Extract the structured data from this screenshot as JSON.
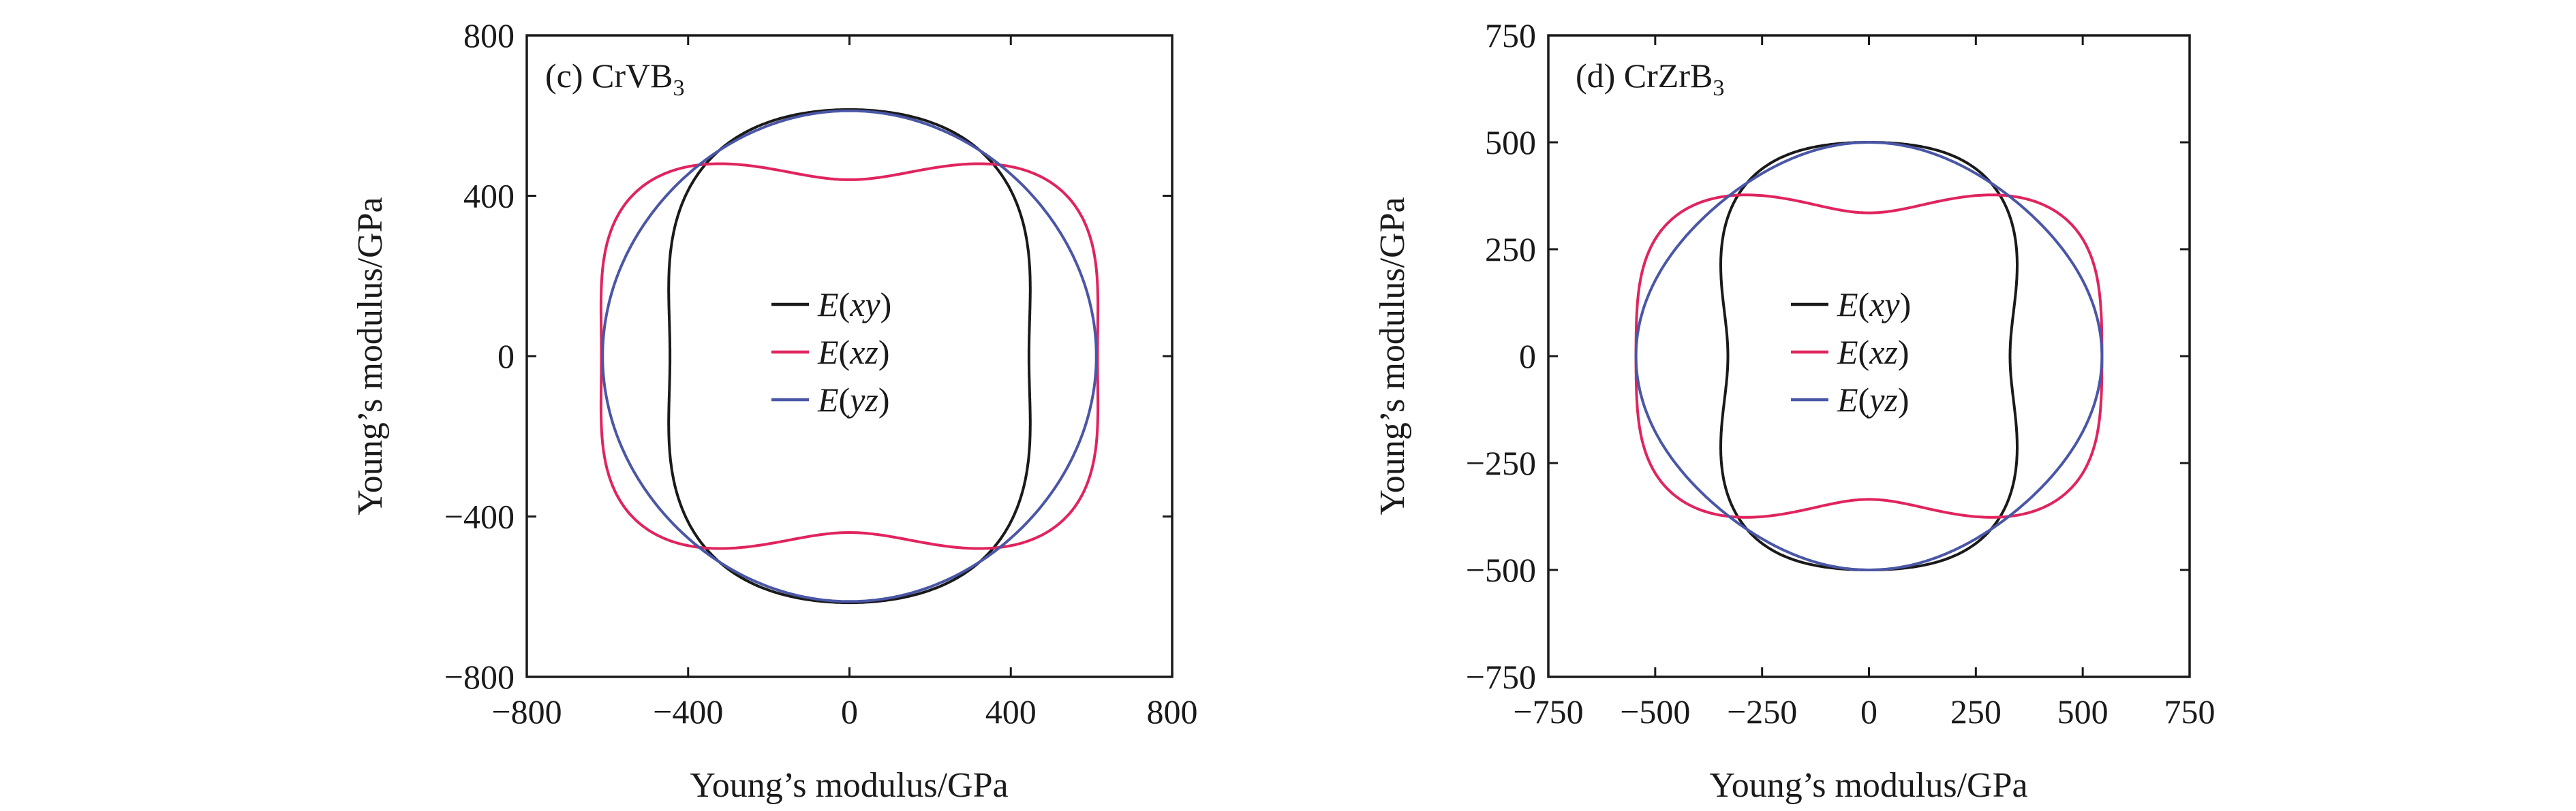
{
  "chart_data": [
    {
      "type": "polar-curve",
      "panel_label": "(c) CrVB",
      "panel_label_sub": "3",
      "xlabel": "Young’s modulus/GPa",
      "ylabel": "Young’s modulus/GPa",
      "xlim": [
        -800,
        800
      ],
      "ylim": [
        -800,
        800
      ],
      "xticks": [
        -800,
        -400,
        0,
        400,
        800
      ],
      "yticks": [
        -800,
        -400,
        0,
        400,
        800
      ],
      "xtick_labels": [
        "−800",
        "−400",
        "0",
        "400",
        "800"
      ],
      "ytick_labels": [
        "−800",
        "−400",
        "0",
        "400",
        "800"
      ],
      "legend_position": "center",
      "series": [
        {
          "name": "E(xy)",
          "italic_part": "xy",
          "color": "#1a1a1a",
          "r_axis_x": 445,
          "r_axis_y": 615,
          "r_diagonal": 572,
          "shape": "rounded-rect-vertical"
        },
        {
          "name": "E(xz)",
          "italic_part": "xz",
          "color": "#e0245e",
          "r_axis_x": 615,
          "r_axis_y": 440,
          "r_diagonal": 645,
          "shape": "rounded-rect-horizontal"
        },
        {
          "name": "E(yz)",
          "italic_part": "yz",
          "color": "#4a56a6",
          "r_axis_x": 612,
          "r_axis_y": 612,
          "r_diagonal": 605,
          "shape": "near-circle"
        }
      ]
    },
    {
      "type": "polar-curve",
      "panel_label": "(d) CrZrB",
      "panel_label_sub": "3",
      "xlabel": "Young’s modulus/GPa",
      "ylabel": "Young’s modulus/GPa",
      "xlim": [
        -750,
        750
      ],
      "ylim": [
        -750,
        750
      ],
      "xticks": [
        -750,
        -500,
        -250,
        0,
        250,
        500,
        750
      ],
      "yticks": [
        -750,
        -500,
        -250,
        0,
        250,
        500,
        750
      ],
      "xtick_labels": [
        "−750",
        "−500",
        "−250",
        "0",
        "250",
        "500",
        "750"
      ],
      "ytick_labels": [
        "−750",
        "−500",
        "−250",
        "0",
        "250",
        "500",
        "750"
      ],
      "legend_position": "center",
      "series": [
        {
          "name": "E(xy)",
          "italic_part": "xy",
          "color": "#1a1a1a",
          "r_axis_x": 330,
          "r_axis_y": 500,
          "r_diagonal": 465,
          "shape": "rounded-rect-vertical"
        },
        {
          "name": "E(xz)",
          "italic_part": "xz",
          "color": "#e0245e",
          "r_axis_x": 545,
          "r_axis_y": 335,
          "r_diagonal": 520,
          "shape": "rounded-rect-horizontal"
        },
        {
          "name": "E(yz)",
          "italic_part": "yz",
          "color": "#4a56a6",
          "r_axis_x": 545,
          "r_axis_y": 500,
          "r_diagonal": 500,
          "shape": "ellipse-like"
        }
      ]
    }
  ]
}
